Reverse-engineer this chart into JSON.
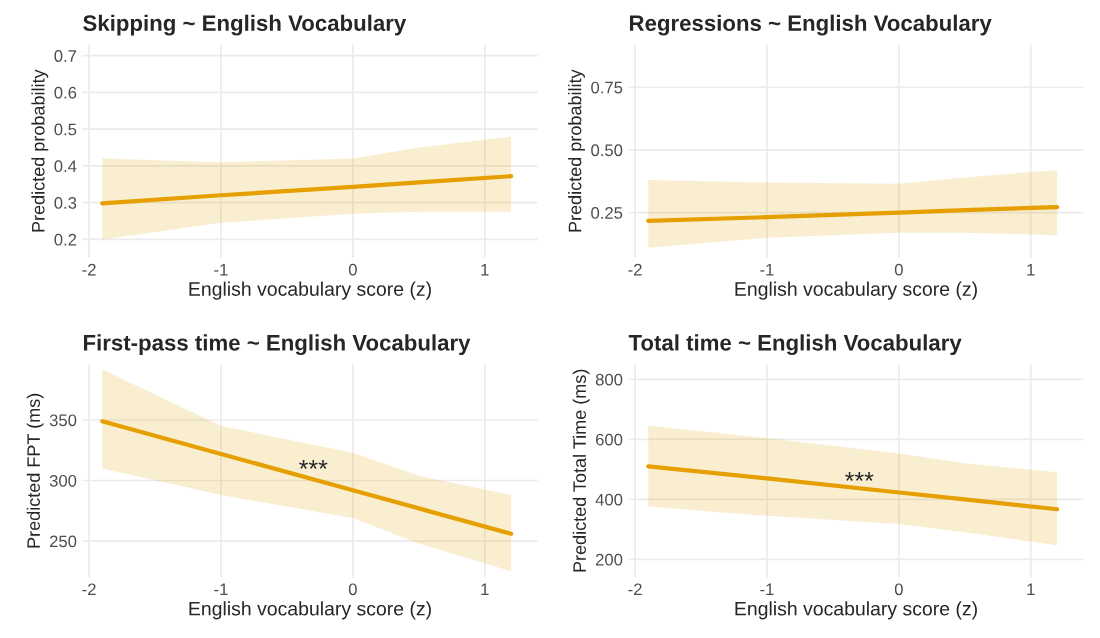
{
  "chart_data": [
    {
      "type": "line",
      "title": "Skipping ~ English Vocabulary",
      "xlabel": "English vocabulary score (z)",
      "ylabel": "Predicted probability",
      "xlim": [
        -2.05,
        1.4
      ],
      "xticks": [
        -2,
        -1,
        0,
        1
      ],
      "ylim": [
        0.15,
        0.73
      ],
      "yticks": [
        0.2,
        0.3,
        0.4,
        0.5,
        0.6,
        0.7
      ],
      "grid": true,
      "series": [
        {
          "color": "#e69f00",
          "x": [
            -1.9,
            -1,
            0,
            0.5,
            1.2
          ],
          "values": [
            0.298,
            0.32,
            0.343,
            0.355,
            0.372
          ],
          "lower": [
            0.2,
            0.245,
            0.27,
            0.275,
            0.275
          ],
          "upper": [
            0.42,
            0.41,
            0.42,
            0.45,
            0.48
          ]
        }
      ]
    },
    {
      "type": "line",
      "title": "Regressions ~ English Vocabulary",
      "xlabel": "English vocabulary score (z)",
      "ylabel": "Predicted probability",
      "xlim": [
        -2.05,
        1.4
      ],
      "xticks": [
        -2,
        -1,
        0,
        1
      ],
      "ylim": [
        0.07,
        0.92
      ],
      "yticks": [
        {
          "value": 0.25,
          "label": "0.25"
        },
        {
          "value": 0.5,
          "label": "0.50"
        },
        {
          "value": 0.75,
          "label": "0.75"
        }
      ],
      "grid": true,
      "series": [
        {
          "color": "#e69f00",
          "x": [
            -1.9,
            -1,
            0,
            0.5,
            1.2
          ],
          "values": [
            0.217,
            0.232,
            0.25,
            0.26,
            0.272
          ],
          "lower": [
            0.11,
            0.15,
            0.17,
            0.17,
            0.16
          ],
          "upper": [
            0.38,
            0.37,
            0.365,
            0.39,
            0.42
          ]
        }
      ]
    },
    {
      "type": "line",
      "title": "First-pass time ~ English Vocabulary",
      "xlabel": "English vocabulary score (z)",
      "ylabel": "Predicted FPT (ms)",
      "xlim": [
        -2.05,
        1.4
      ],
      "xticks": [
        -2,
        -1,
        0,
        1
      ],
      "ylim": [
        220,
        396
      ],
      "yticks": [
        250,
        300,
        350
      ],
      "grid": true,
      "annotations": [
        {
          "text": "***",
          "x": -0.3,
          "y": 308
        }
      ],
      "series": [
        {
          "color": "#e69f00",
          "x": [
            -1.9,
            -1,
            0,
            0.5,
            1.2
          ],
          "values": [
            349,
            322,
            292,
            277,
            256
          ],
          "lower": [
            310,
            288,
            269,
            248,
            225
          ],
          "upper": [
            392,
            345,
            323,
            304,
            288
          ]
        }
      ]
    },
    {
      "type": "line",
      "title": "Total time ~ English Vocabulary",
      "xlabel": "English vocabulary score (z)",
      "ylabel": "Predicted Total Time (ms)",
      "xlim": [
        -2.05,
        1.4
      ],
      "xticks": [
        -2,
        -1,
        0,
        1
      ],
      "ylim": [
        140,
        850
      ],
      "yticks": [
        200,
        400,
        600,
        800
      ],
      "grid": true,
      "annotations": [
        {
          "text": "***",
          "x": -0.3,
          "y": 455
        }
      ],
      "series": [
        {
          "color": "#e69f00",
          "x": [
            -1.9,
            -1,
            0,
            0.5,
            1.2
          ],
          "values": [
            510,
            470,
            423,
            400,
            367
          ],
          "lower": [
            376,
            345,
            318,
            290,
            247
          ],
          "upper": [
            645,
            604,
            553,
            520,
            490
          ]
        }
      ]
    }
  ]
}
